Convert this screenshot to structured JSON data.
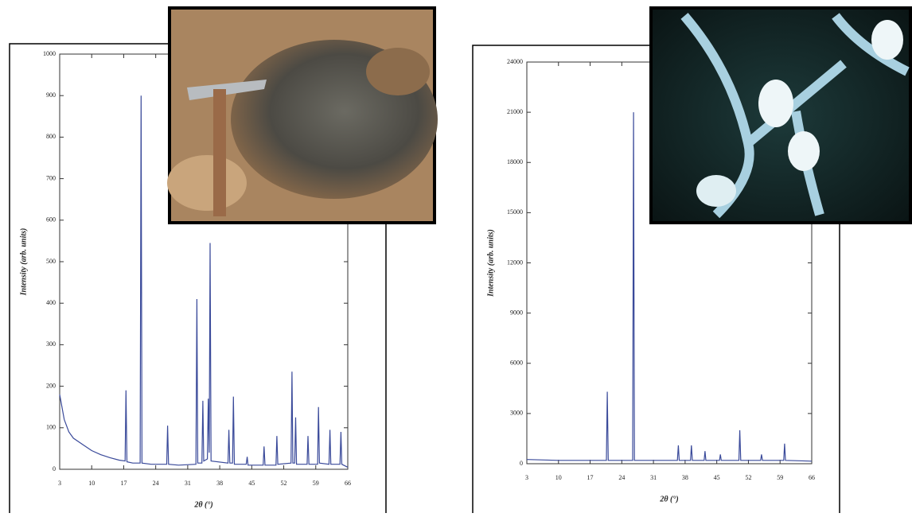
{
  "chart_data": [
    {
      "type": "line",
      "color": "#3a4a9a",
      "xlabel": "2θ (°)",
      "ylabel": "Intensity (arb. units)",
      "xlim": [
        3,
        66
      ],
      "ylim": [
        0,
        1000
      ],
      "xticks": [
        3,
        10,
        17,
        24,
        31,
        38,
        45,
        52,
        59,
        66
      ],
      "yticks": [
        0,
        100,
        200,
        300,
        400,
        500,
        600,
        700,
        800,
        900,
        1000
      ],
      "x": [
        3,
        4,
        5,
        6,
        8,
        10,
        12,
        14,
        16,
        17.3,
        17.5,
        17.7,
        19,
        20.6,
        20.8,
        21,
        23,
        26.4,
        26.6,
        26.8,
        29,
        32.8,
        33,
        33.2,
        34.1,
        34.3,
        34.5,
        35.3,
        35.5,
        35.7,
        35.9,
        36.1,
        39.8,
        40,
        40.2,
        40.8,
        41,
        41.2,
        43.8,
        44,
        44.2,
        47.5,
        47.7,
        47.9,
        50.3,
        50.5,
        50.7,
        53.6,
        53.8,
        54,
        54.4,
        54.6,
        54.8,
        57.1,
        57.3,
        57.5,
        59.4,
        59.6,
        59.8,
        61.9,
        62.1,
        62.3,
        64.3,
        64.5,
        64.7,
        66
      ],
      "values": [
        180,
        120,
        90,
        75,
        60,
        45,
        35,
        28,
        22,
        20,
        190,
        18,
        15,
        15,
        900,
        15,
        12,
        12,
        105,
        12,
        10,
        12,
        410,
        15,
        15,
        165,
        20,
        25,
        170,
        40,
        545,
        20,
        15,
        95,
        15,
        15,
        175,
        12,
        12,
        30,
        10,
        10,
        55,
        10,
        10,
        80,
        12,
        15,
        235,
        15,
        15,
        125,
        12,
        12,
        80,
        12,
        12,
        150,
        15,
        12,
        95,
        12,
        12,
        90,
        12,
        5
      ]
    },
    {
      "type": "line",
      "color": "#3a4a9a",
      "xlabel": "2θ (°)",
      "ylabel": "Intensity (arb. units)",
      "xlim": [
        3,
        66
      ],
      "ylim": [
        0,
        24000
      ],
      "xticks": [
        3,
        10,
        17,
        24,
        31,
        38,
        45,
        52,
        59,
        66
      ],
      "yticks": [
        0,
        3000,
        6000,
        9000,
        12000,
        15000,
        18000,
        21000,
        24000
      ],
      "x": [
        3,
        10,
        20.6,
        20.8,
        21,
        26.4,
        26.6,
        26.8,
        36.3,
        36.5,
        36.7,
        39.2,
        39.4,
        39.6,
        42.2,
        42.4,
        42.6,
        45.6,
        45.8,
        46,
        49.9,
        50.1,
        50.3,
        54.7,
        54.9,
        55.1,
        59.8,
        60,
        60.2,
        66
      ],
      "values": [
        250,
        200,
        200,
        4300,
        200,
        200,
        21000,
        200,
        200,
        1100,
        200,
        200,
        1100,
        200,
        200,
        750,
        200,
        200,
        550,
        200,
        200,
        2000,
        200,
        200,
        550,
        200,
        200,
        1200,
        200,
        150
      ]
    }
  ]
}
